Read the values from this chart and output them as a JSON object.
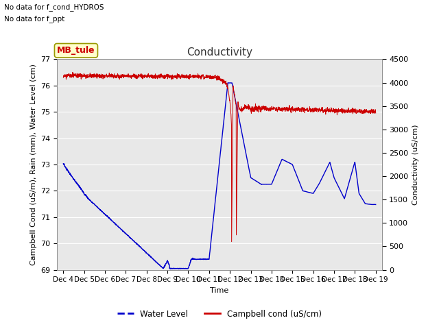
{
  "title": "Conductivity",
  "left_ylabel": "Campbell Cond (uS/m), Rain (mm), Water Level (cm)",
  "right_ylabel": "Conductivity (uS/cm)",
  "xlabel": "Time",
  "ylim_left": [
    69.0,
    77.0
  ],
  "ylim_right": [
    0,
    4500
  ],
  "yticks_left": [
    69.0,
    70.0,
    71.0,
    72.0,
    73.0,
    74.0,
    75.0,
    76.0,
    77.0
  ],
  "yticks_right": [
    0,
    500,
    1000,
    1500,
    2000,
    2500,
    3000,
    3500,
    4000,
    4500
  ],
  "xtick_labels": [
    "Dec 4",
    "Dec 5",
    "Dec 6",
    "Dec 7",
    "Dec 8",
    "Dec 9",
    "Dec 10",
    "Dec 11",
    "Dec 12",
    "Dec 13",
    "Dec 14",
    "Dec 15",
    "Dec 16",
    "Dec 17",
    "Dec 18",
    "Dec 19"
  ],
  "no_data_text_1": "No data for f_cond_HYDROS",
  "no_data_text_2": "No data for f_ppt",
  "annotation_box_text": "MB_tule",
  "plot_bg_color": "#e8e8e8",
  "fig_bg_color": "#ffffff",
  "water_level_color": "#0000cc",
  "campbell_cond_color": "#cc0000",
  "grid_color": "#ffffff",
  "legend_water_label": "Water Level",
  "legend_cond_label": "Campbell cond (uS/cm)",
  "title_fontsize": 11,
  "axis_label_fontsize": 8,
  "tick_fontsize": 8,
  "xtick_fontsize": 7.5
}
